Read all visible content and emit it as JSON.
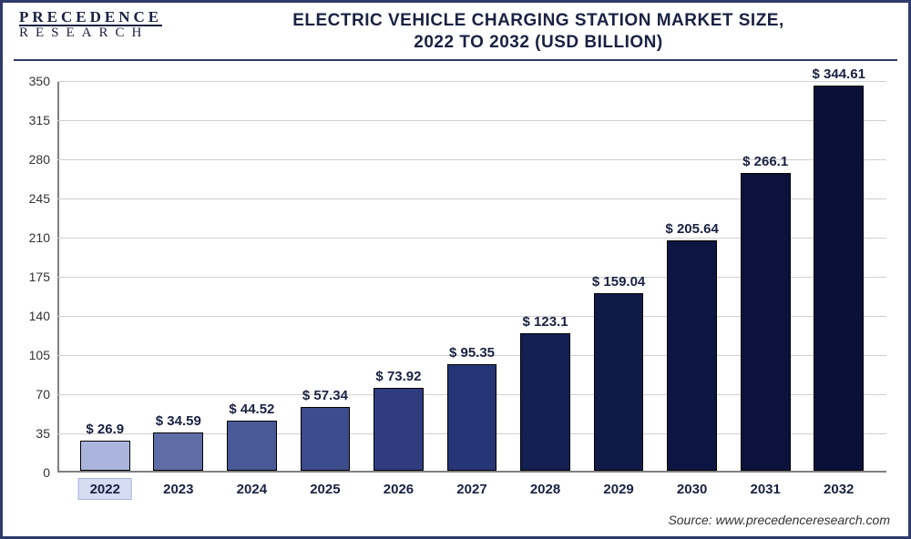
{
  "logo": {
    "line1": "PRECEDENCE",
    "line2": "RESEARCH"
  },
  "title": {
    "line1": "ELECTRIC VEHICLE CHARGING STATION MARKET SIZE,",
    "line2": "2022 TO 2032 (USD BILLION)"
  },
  "source": "Source: www.precedenceresearch.com",
  "chart": {
    "type": "bar",
    "ylim": [
      0,
      350
    ],
    "ytick_step": 35,
    "yticks": [
      0,
      35,
      70,
      105,
      140,
      175,
      210,
      245,
      280,
      315,
      350
    ],
    "grid_color": "#cfcfcf",
    "axis_color": "#808080",
    "background_color": "#ffffff",
    "label_fontsize": 15,
    "value_label_prefix": "$ ",
    "bar_width_ratio": 0.68,
    "highlight_index": 0,
    "highlight_bg": "#d6dcf2",
    "categories": [
      "2022",
      "2023",
      "2024",
      "2025",
      "2026",
      "2027",
      "2028",
      "2029",
      "2030",
      "2031",
      "2032"
    ],
    "values": [
      26.9,
      34.59,
      44.52,
      57.34,
      73.92,
      95.35,
      123.1,
      159.04,
      205.64,
      266.1,
      344.61
    ],
    "bar_colors": [
      "#aab4dd",
      "#5f6da6",
      "#4a5a99",
      "#3d4c8c",
      "#2f3d80",
      "#263576",
      "#141f52",
      "#101a49",
      "#0d1642",
      "#0b133c",
      "#0a1138"
    ]
  }
}
